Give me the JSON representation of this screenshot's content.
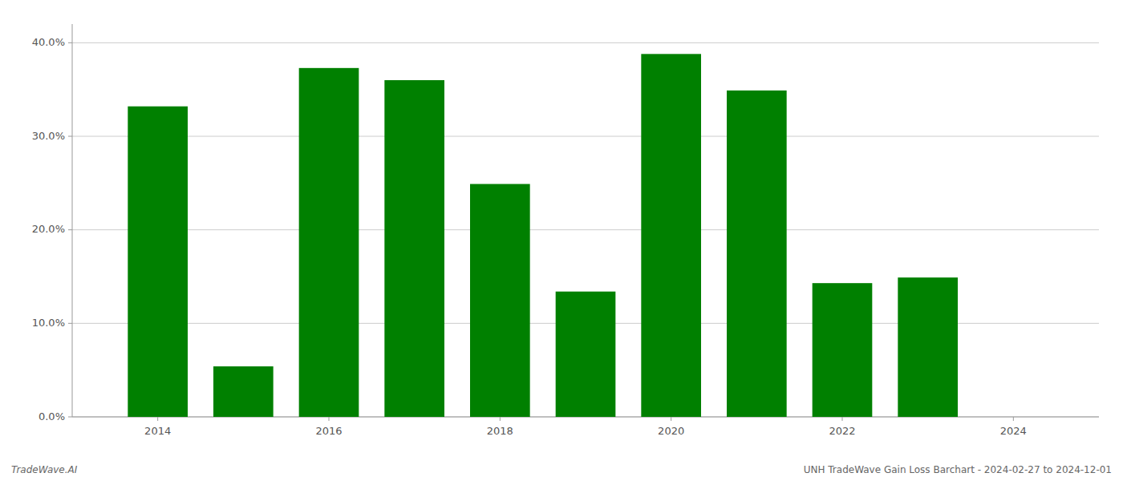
{
  "chart_data": {
    "type": "bar",
    "x": [
      2014,
      2015,
      2016,
      2017,
      2018,
      2019,
      2020,
      2021,
      2022,
      2023
    ],
    "values": [
      0.332,
      0.054,
      0.373,
      0.36,
      0.249,
      0.134,
      0.388,
      0.349,
      0.143,
      0.149
    ],
    "color": "#008000",
    "xlim": [
      2013.0,
      2025.0
    ],
    "xticks": [
      2014,
      2016,
      2018,
      2020,
      2022,
      2024
    ],
    "ylim": [
      0,
      0.42
    ],
    "yticks": [
      {
        "value": 0.0,
        "label": "0.0%"
      },
      {
        "value": 0.1,
        "label": "10.0%"
      },
      {
        "value": 0.2,
        "label": "20.0%"
      },
      {
        "value": 0.3,
        "label": "30.0%"
      },
      {
        "value": 0.4,
        "label": "40.0%"
      }
    ],
    "grid": "y",
    "annotations": [
      "TradeWave.AI",
      "UNH TradeWave Gain Loss Barchart - 2024-02-27 to 2024-12-01"
    ]
  }
}
